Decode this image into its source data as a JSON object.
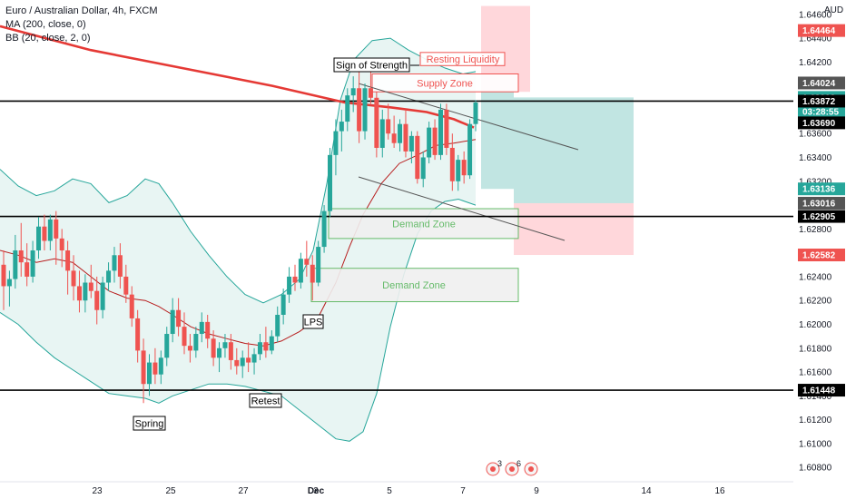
{
  "legend": {
    "title": "Euro / Australian Dollar, 4h, FXCM",
    "ma": "MA (200, close, 0)",
    "bb": "BB (20, close, 2, 0)"
  },
  "currency": "AUD",
  "colors": {
    "up": "#26a69a",
    "down": "#ef5350",
    "ma": "#e53935",
    "bb_band": "#26a69a",
    "bb_basis": "#b71c1c",
    "bb_fill": "#e8f5f3",
    "zone_stroke": "#66bb6a",
    "zone_fill": "#f0f0f0",
    "supply_stroke": "#ef5350",
    "stop_fill": "#ffcdd2",
    "target_fill": "#b2dfdb",
    "black": "#000000"
  },
  "chart_data": {
    "type": "candlestick",
    "ylim": [
      1.6068,
      1.6472
    ],
    "y_ticks": [
      "1.64600",
      "1.64400",
      "1.64200",
      "1.64000",
      "1.63800",
      "1.63600",
      "1.63400",
      "1.63200",
      "1.63000",
      "1.62800",
      "1.62600",
      "1.62400",
      "1.62200",
      "1.62000",
      "1.61800",
      "1.61600",
      "1.61400",
      "1.61200",
      "1.61000",
      "1.60800"
    ],
    "x_ticks": [
      "23",
      "25",
      "27",
      "Dec",
      "3",
      "5",
      "7",
      "9",
      "14",
      "16"
    ],
    "price_labels": [
      {
        "value": 1.64464,
        "text": "1.64464",
        "color": "#ef5350"
      },
      {
        "value": 1.64024,
        "text": "1.64024",
        "color": "#555555"
      },
      {
        "value": 1.63903,
        "text": "1.63903",
        "color": "#26a69a"
      },
      {
        "value": 1.63786,
        "text": "03:28:55",
        "color": "#26a69a"
      },
      {
        "value": 1.63872,
        "text": "1.63872",
        "color": "#000000"
      },
      {
        "value": 1.6369,
        "text": "1.63690",
        "color": "#000000"
      },
      {
        "value": 1.63136,
        "text": "1.63136",
        "color": "#26a69a"
      },
      {
        "value": 1.63016,
        "text": "1.63016",
        "color": "#555555"
      },
      {
        "value": 1.62905,
        "text": "1.62905",
        "color": "#000000"
      },
      {
        "value": 1.62582,
        "text": "1.62582",
        "color": "#ef5350"
      },
      {
        "value": 1.61448,
        "text": "1.61448",
        "color": "#000000"
      }
    ],
    "horizontal_lines": [
      1.63872,
      1.62905,
      1.61448
    ],
    "candles_ohlc": [
      [
        1.625,
        1.6262,
        1.6212,
        1.6232
      ],
      [
        1.6232,
        1.6245,
        1.6215,
        1.6238
      ],
      [
        1.6238,
        1.6275,
        1.623,
        1.6262
      ],
      [
        1.6262,
        1.6285,
        1.624,
        1.6252
      ],
      [
        1.6252,
        1.6268,
        1.6232,
        1.624
      ],
      [
        1.624,
        1.627,
        1.6235,
        1.6262
      ],
      [
        1.6262,
        1.629,
        1.6255,
        1.6282
      ],
      [
        1.6282,
        1.6292,
        1.6262,
        1.627
      ],
      [
        1.627,
        1.6292,
        1.6262,
        1.6288
      ],
      [
        1.6288,
        1.6295,
        1.625,
        1.6272
      ],
      [
        1.6272,
        1.628,
        1.6248,
        1.6262
      ],
      [
        1.6262,
        1.627,
        1.6225,
        1.6245
      ],
      [
        1.6245,
        1.6258,
        1.622,
        1.6232
      ],
      [
        1.6232,
        1.6245,
        1.621,
        1.622
      ],
      [
        1.622,
        1.6242,
        1.621,
        1.6235
      ],
      [
        1.6235,
        1.625,
        1.6222,
        1.6228
      ],
      [
        1.6228,
        1.624,
        1.62,
        1.6212
      ],
      [
        1.6212,
        1.624,
        1.6205,
        1.6235
      ],
      [
        1.6235,
        1.6252,
        1.6228,
        1.6245
      ],
      [
        1.6245,
        1.6265,
        1.6235,
        1.6258
      ],
      [
        1.6258,
        1.6268,
        1.623,
        1.624
      ],
      [
        1.624,
        1.625,
        1.6218,
        1.6225
      ],
      [
        1.6225,
        1.6232,
        1.6198,
        1.6205
      ],
      [
        1.6205,
        1.6212,
        1.6168,
        1.6178
      ],
      [
        1.6178,
        1.6188,
        1.6134,
        1.615
      ],
      [
        1.615,
        1.6175,
        1.614,
        1.6168
      ],
      [
        1.6168,
        1.618,
        1.615,
        1.6158
      ],
      [
        1.6158,
        1.6178,
        1.615,
        1.6172
      ],
      [
        1.6172,
        1.6198,
        1.6165,
        1.6192
      ],
      [
        1.6192,
        1.6222,
        1.6185,
        1.6212
      ],
      [
        1.6212,
        1.6222,
        1.619,
        1.6198
      ],
      [
        1.6198,
        1.621,
        1.6175,
        1.6182
      ],
      [
        1.6182,
        1.6192,
        1.6168,
        1.6178
      ],
      [
        1.6178,
        1.6198,
        1.6172,
        1.6192
      ],
      [
        1.6192,
        1.621,
        1.6185,
        1.6202
      ],
      [
        1.6202,
        1.6208,
        1.618,
        1.6188
      ],
      [
        1.6188,
        1.6195,
        1.6165,
        1.6172
      ],
      [
        1.6172,
        1.6185,
        1.616,
        1.618
      ],
      [
        1.618,
        1.6192,
        1.6172,
        1.6185
      ],
      [
        1.6185,
        1.6192,
        1.6162,
        1.617
      ],
      [
        1.617,
        1.618,
        1.6158,
        1.6165
      ],
      [
        1.6165,
        1.6178,
        1.6155,
        1.6172
      ],
      [
        1.6172,
        1.6185,
        1.616,
        1.6168
      ],
      [
        1.6168,
        1.618,
        1.6158,
        1.6175
      ],
      [
        1.6175,
        1.6192,
        1.617,
        1.6185
      ],
      [
        1.6185,
        1.6198,
        1.6172,
        1.6178
      ],
      [
        1.6178,
        1.6195,
        1.6175,
        1.619
      ],
      [
        1.619,
        1.6215,
        1.6185,
        1.6208
      ],
      [
        1.6208,
        1.623,
        1.62,
        1.6225
      ],
      [
        1.6225,
        1.6248,
        1.6218,
        1.624
      ],
      [
        1.624,
        1.625,
        1.6228,
        1.6235
      ],
      [
        1.6235,
        1.626,
        1.623,
        1.6255
      ],
      [
        1.6255,
        1.627,
        1.624,
        1.625
      ],
      [
        1.625,
        1.6258,
        1.622,
        1.6235
      ],
      [
        1.6235,
        1.627,
        1.6232,
        1.6265
      ],
      [
        1.6265,
        1.63,
        1.626,
        1.6295
      ],
      [
        1.6295,
        1.6348,
        1.629,
        1.6342
      ],
      [
        1.6342,
        1.6372,
        1.6325,
        1.6362
      ],
      [
        1.6362,
        1.638,
        1.6345,
        1.637
      ],
      [
        1.637,
        1.6398,
        1.6362,
        1.6392
      ],
      [
        1.6392,
        1.6408,
        1.6378,
        1.6398
      ],
      [
        1.6398,
        1.6412,
        1.6352,
        1.6362
      ],
      [
        1.6362,
        1.6402,
        1.6355,
        1.6398
      ],
      [
        1.6398,
        1.6412,
        1.6385,
        1.639
      ],
      [
        1.639,
        1.6395,
        1.634,
        1.6348
      ],
      [
        1.6348,
        1.638,
        1.634,
        1.6372
      ],
      [
        1.6372,
        1.6385,
        1.6355,
        1.636
      ],
      [
        1.636,
        1.6375,
        1.6348,
        1.6352
      ],
      [
        1.6352,
        1.6372,
        1.6345,
        1.6368
      ],
      [
        1.6368,
        1.638,
        1.634,
        1.6345
      ],
      [
        1.6345,
        1.6362,
        1.6335,
        1.6358
      ],
      [
        1.6358,
        1.6362,
        1.6318,
        1.6322
      ],
      [
        1.6322,
        1.6345,
        1.6315,
        1.634
      ],
      [
        1.634,
        1.637,
        1.6335,
        1.6365
      ],
      [
        1.6365,
        1.6372,
        1.6338,
        1.6342
      ],
      [
        1.6342,
        1.6385,
        1.6338,
        1.638
      ],
      [
        1.638,
        1.6385,
        1.6342,
        1.6348
      ],
      [
        1.6348,
        1.636,
        1.6312,
        1.632
      ],
      [
        1.632,
        1.6342,
        1.6312,
        1.6338
      ],
      [
        1.6338,
        1.6345,
        1.6318,
        1.6325
      ],
      [
        1.6325,
        1.6372,
        1.6322,
        1.6368
      ],
      [
        1.6368,
        1.6388,
        1.6362,
        1.6386
      ]
    ],
    "ma200": [
      [
        0,
        1.645
      ],
      [
        100,
        1.643
      ],
      [
        200,
        1.6415
      ],
      [
        300,
        1.64
      ],
      [
        380,
        1.6386
      ],
      [
        430,
        1.6382
      ],
      [
        470,
        1.6378
      ],
      [
        500,
        1.6372
      ],
      [
        522,
        1.6365
      ]
    ],
    "bb_upper": [
      [
        0,
        1.633
      ],
      [
        20,
        1.6316
      ],
      [
        40,
        1.6308
      ],
      [
        60,
        1.6312
      ],
      [
        80,
        1.6322
      ],
      [
        100,
        1.6318
      ],
      [
        120,
        1.6302
      ],
      [
        140,
        1.6308
      ],
      [
        160,
        1.6322
      ],
      [
        175,
        1.6318
      ],
      [
        190,
        1.6302
      ],
      [
        210,
        1.6278
      ],
      [
        230,
        1.6258
      ],
      [
        250,
        1.624
      ],
      [
        270,
        1.6225
      ],
      [
        290,
        1.6218
      ],
      [
        310,
        1.6225
      ],
      [
        330,
        1.6238
      ],
      [
        345,
        1.6262
      ],
      [
        360,
        1.6318
      ],
      [
        375,
        1.6388
      ],
      [
        390,
        1.6422
      ],
      [
        410,
        1.6438
      ],
      [
        430,
        1.644
      ],
      [
        450,
        1.643
      ],
      [
        470,
        1.6422
      ],
      [
        490,
        1.6415
      ],
      [
        510,
        1.641
      ],
      [
        524,
        1.6412
      ]
    ],
    "bb_lower": [
      [
        0,
        1.621
      ],
      [
        20,
        1.62
      ],
      [
        40,
        1.6185
      ],
      [
        60,
        1.6172
      ],
      [
        80,
        1.6162
      ],
      [
        100,
        1.6152
      ],
      [
        120,
        1.6142
      ],
      [
        140,
        1.614
      ],
      [
        160,
        1.6138
      ],
      [
        175,
        1.6134
      ],
      [
        190,
        1.614
      ],
      [
        210,
        1.6145
      ],
      [
        230,
        1.615
      ],
      [
        250,
        1.615
      ],
      [
        270,
        1.6148
      ],
      [
        290,
        1.6144
      ],
      [
        310,
        1.614
      ],
      [
        330,
        1.6128
      ],
      [
        350,
        1.6116
      ],
      [
        370,
        1.6104
      ],
      [
        385,
        1.6102
      ],
      [
        400,
        1.611
      ],
      [
        415,
        1.6142
      ],
      [
        430,
        1.6198
      ],
      [
        445,
        1.6242
      ],
      [
        460,
        1.6276
      ],
      [
        475,
        1.6295
      ],
      [
        490,
        1.6303
      ],
      [
        505,
        1.6305
      ],
      [
        524,
        1.63
      ]
    ],
    "bb_basis": [
      [
        0,
        1.6262
      ],
      [
        20,
        1.6258
      ],
      [
        40,
        1.6252
      ],
      [
        60,
        1.6255
      ],
      [
        80,
        1.6252
      ],
      [
        100,
        1.624
      ],
      [
        120,
        1.6228
      ],
      [
        140,
        1.6222
      ],
      [
        160,
        1.622
      ],
      [
        175,
        1.6215
      ],
      [
        190,
        1.6208
      ],
      [
        210,
        1.6198
      ],
      [
        230,
        1.6192
      ],
      [
        250,
        1.6188
      ],
      [
        270,
        1.6184
      ],
      [
        290,
        1.6182
      ],
      [
        310,
        1.6186
      ],
      [
        330,
        1.6194
      ],
      [
        350,
        1.6205
      ],
      [
        370,
        1.6235
      ],
      [
        385,
        1.6265
      ],
      [
        400,
        1.6292
      ],
      [
        420,
        1.6318
      ],
      [
        440,
        1.6335
      ],
      [
        460,
        1.6342
      ],
      [
        480,
        1.635
      ],
      [
        500,
        1.6352
      ],
      [
        524,
        1.6355
      ]
    ],
    "zones": [
      {
        "label": "Demand Zone",
        "y1": 1.6297,
        "y2": 1.6272
      },
      {
        "label": "Demand Zone",
        "y1": 1.6247,
        "y2": 1.6219
      },
      {
        "label": "Supply Zone",
        "y1": 1.641,
        "y2": 1.6395
      },
      {
        "label": "Resting Liquidity",
        "y1": 1.6428,
        "y2": 1.6417
      }
    ],
    "position": {
      "stop_top": 1.6467,
      "target_low": 1.63136,
      "target_high": 1.63903,
      "entry": 1.63016,
      "stop_low": 1.62582
    },
    "annotations": [
      "Sign of Strength",
      "LPS",
      "Spring",
      "Retest"
    ],
    "event_badges": [
      "3",
      "6"
    ]
  }
}
